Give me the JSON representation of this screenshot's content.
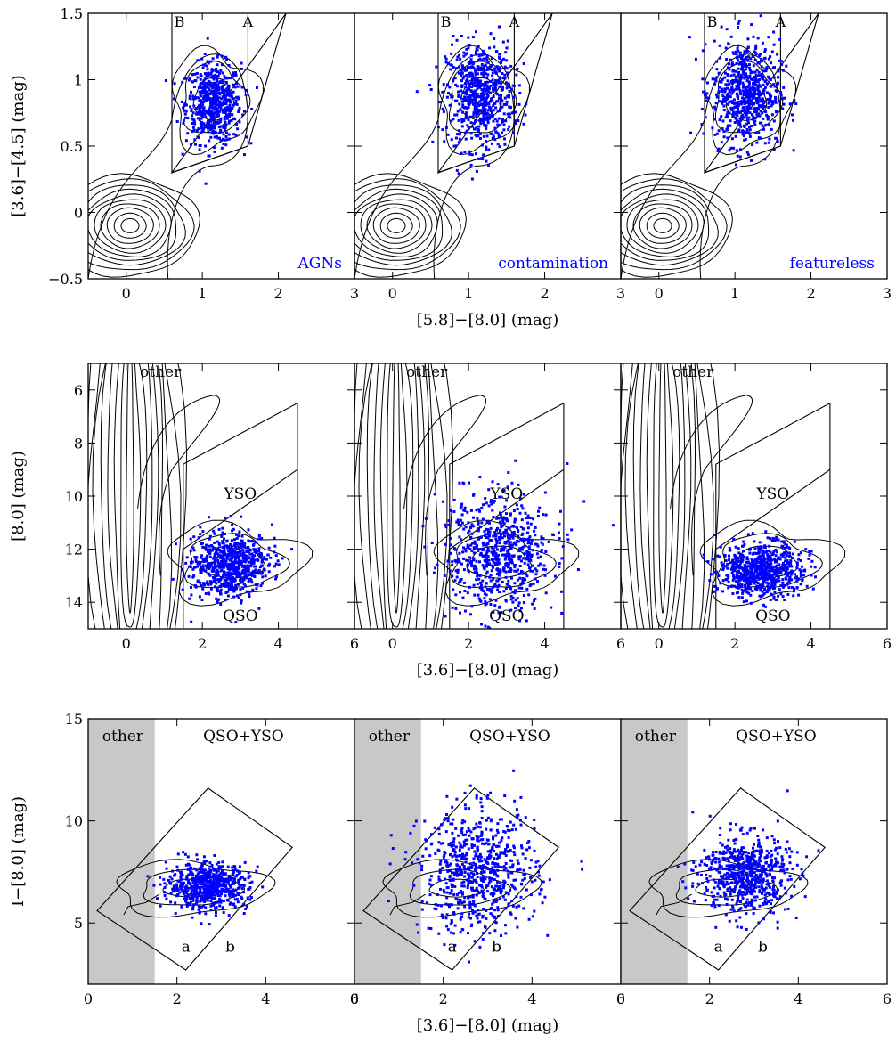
{
  "figure": {
    "row_xlabels": [
      "[5.8]−[8.0] (mag)",
      "[3.6]−[8.0] (mag)",
      "[3.6]−[8.0] (mag)"
    ],
    "row_ylabels": [
      "[3.6]−[4.5] (mag)",
      "[8.0] (mag)",
      "I−[8.0] (mag)"
    ]
  },
  "colors": {
    "points": "#0000ff",
    "lines": "#000000",
    "shade": "#c8c8c8",
    "labels": "#0000ff"
  },
  "chart_data": [
    {
      "type": "scatter",
      "row": 1,
      "xlabel": "[5.8]−[8.0] (mag)",
      "ylabel": "[3.6]−[4.5] (mag)",
      "xlim": [
        -0.5,
        3
      ],
      "ylim": [
        -0.5,
        1.5
      ],
      "xticks": [
        0,
        1,
        2,
        3
      ],
      "yticks": [
        -0.5,
        0,
        0.5,
        1,
        1.5
      ],
      "yticklabels": [
        "−0.5",
        "0",
        "0.5",
        "1",
        "1.5"
      ],
      "region_labels": [
        "B",
        "A"
      ],
      "regions": [
        {
          "name": "B",
          "boundary": [
            [
              0.6,
              1.5
            ],
            [
              0.6,
              0.3
            ],
            [
              1.6,
              0.5
            ],
            [
              1.6,
              1.5
            ]
          ]
        },
        {
          "name": "A",
          "boundary": [
            [
              0.6,
              0.3
            ],
            [
              1.6,
              0.5
            ],
            [
              2.1,
              1.5
            ]
          ]
        }
      ],
      "panels": [
        {
          "label": "AGNs",
          "cloud": {
            "cx": 1.15,
            "cy": 0.82,
            "sx": 0.18,
            "sy": 0.15,
            "n": 600
          }
        },
        {
          "label": "contamination",
          "cloud": {
            "cx": 1.15,
            "cy": 0.88,
            "sx": 0.22,
            "sy": 0.2,
            "n": 650
          }
        },
        {
          "label": "featureless",
          "cloud": {
            "cx": 1.15,
            "cy": 0.9,
            "sx": 0.22,
            "sy": 0.2,
            "n": 650
          }
        }
      ],
      "background_contours": "stellar and AGN density contours"
    },
    {
      "type": "scatter",
      "row": 2,
      "xlabel": "[3.6]−[8.0] (mag)",
      "ylabel": "[8.0] (mag)",
      "xlim": [
        -1,
        6
      ],
      "ylim": [
        15,
        5
      ],
      "xticks": [
        0,
        2,
        4,
        6
      ],
      "yticks": [
        6,
        8,
        10,
        12,
        14
      ],
      "region_labels": [
        "other",
        "YSO",
        "QSO"
      ],
      "panels": [
        {
          "cloud": {
            "cx": 2.7,
            "cy": 12.6,
            "sx": 0.5,
            "sy": 0.6,
            "n": 700
          }
        },
        {
          "cloud": {
            "cx": 2.8,
            "cy": 12.1,
            "sx": 0.7,
            "sy": 1.1,
            "n": 700
          }
        },
        {
          "cloud": {
            "cx": 2.7,
            "cy": 12.8,
            "sx": 0.55,
            "sy": 0.5,
            "n": 700
          }
        }
      ]
    },
    {
      "type": "scatter",
      "row": 3,
      "xlabel": "[3.6]−[8.0] (mag)",
      "ylabel": "I−[8.0] (mag)",
      "xlim": [
        0,
        6
      ],
      "ylim": [
        2,
        15
      ],
      "xticks": [
        0,
        2,
        4,
        6
      ],
      "yticks": [
        5,
        10,
        15
      ],
      "shaded_x": [
        0,
        1.5
      ],
      "region_labels": [
        "other",
        "QSO+YSO",
        "a",
        "b"
      ],
      "panels": [
        {
          "cloud": {
            "cx": 2.7,
            "cy": 6.8,
            "sx": 0.45,
            "sy": 0.55,
            "n": 650
          }
        },
        {
          "cloud": {
            "cx": 2.8,
            "cy": 7.5,
            "sx": 0.65,
            "sy": 1.5,
            "n": 700
          }
        },
        {
          "cloud": {
            "cx": 2.8,
            "cy": 7.4,
            "sx": 0.5,
            "sy": 0.95,
            "n": 650
          }
        }
      ]
    }
  ]
}
